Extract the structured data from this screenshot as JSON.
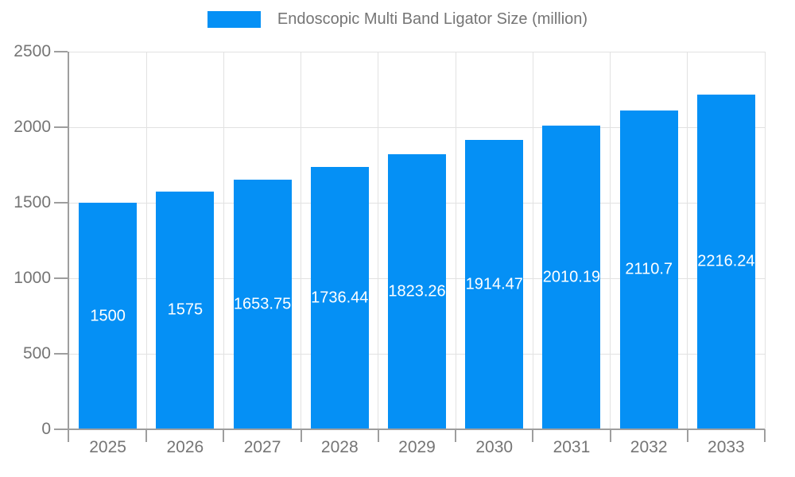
{
  "chart_data": {
    "type": "bar",
    "title": "Endoscopic Multi Band Ligator Size (million)",
    "categories": [
      "2025",
      "2026",
      "2027",
      "2028",
      "2029",
      "2030",
      "2031",
      "2032",
      "2033"
    ],
    "values": [
      1500,
      1575,
      1653.75,
      1736.44,
      1823.26,
      1914.47,
      2010.19,
      2110.7,
      2216.24
    ],
    "value_labels": [
      "1500",
      "1575",
      "1653.75",
      "1736.44",
      "1823.26",
      "1914.47",
      "2010.19",
      "2110.7",
      "2216.24"
    ],
    "xlabel": "",
    "ylabel": "",
    "ylim": [
      0,
      2500
    ],
    "yticks": [
      0,
      500,
      1000,
      1500,
      2000,
      2500
    ],
    "grid": true,
    "legend_position": "top-center",
    "bar_label_position": "inside-middle",
    "colors": {
      "bar": "#0590f5",
      "bar_label": "#ffffff",
      "axis_line": "#9e9e9e",
      "gridline": "#e2e2e2",
      "tick_label": "#757575",
      "legend_text": "#757575",
      "background": "#ffffff"
    }
  }
}
